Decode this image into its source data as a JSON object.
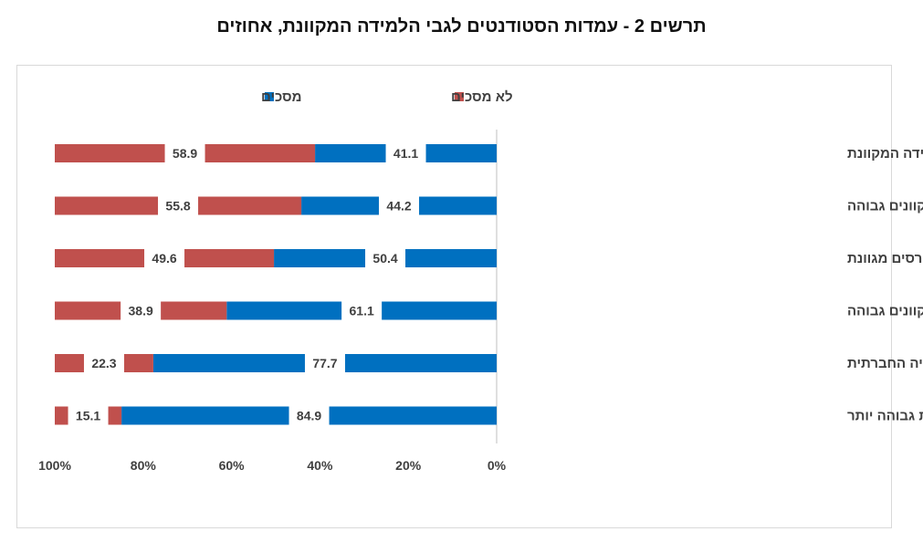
{
  "title": "תרשים 2 - עמדות הסטודנטים לגבי הלמידה המקוונת, אחוזים",
  "chart_data": {
    "type": "bar",
    "orientation": "horizontal",
    "stacked": true,
    "x_direction": "right-to-left",
    "xlim": [
      0,
      100
    ],
    "xticks": [
      "0%",
      "20%",
      "40%",
      "60%",
      "80%",
      "100%"
    ],
    "legend_position": "top",
    "categories": [
      "הרמה האקדמית נפגעת מהלמידה המקוונת",
      "איכות הדיון בשיעורים המקוונים גבוהה",
      "למידה מקוונת מאפשרת בחירת קורסים מגוונת",
      "איכות ההוראה בשיעורים המקוונים גבוהה",
      "למידה מקוונת פוגעת באינטרקציה החברתית",
      "למידה מקוונת דורשת משמעת עצמית גבוהה יותר"
    ],
    "series": [
      {
        "name": "מסכים",
        "color": "#0070c0",
        "values": [
          41.1,
          44.2,
          50.4,
          61.1,
          77.7,
          84.9
        ]
      },
      {
        "name": "לא מסכים",
        "color": "#c0504d",
        "values": [
          58.9,
          55.8,
          49.6,
          38.9,
          22.3,
          15.1
        ]
      }
    ]
  }
}
